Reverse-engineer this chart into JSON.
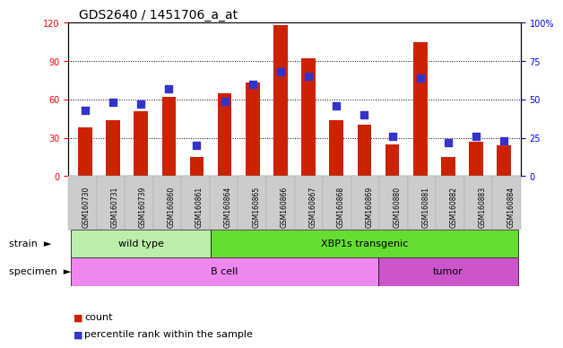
{
  "title": "GDS2640 / 1451706_a_at",
  "samples": [
    "GSM160730",
    "GSM160731",
    "GSM160739",
    "GSM160860",
    "GSM160861",
    "GSM160864",
    "GSM160865",
    "GSM160866",
    "GSM160867",
    "GSM160868",
    "GSM160869",
    "GSM160880",
    "GSM160881",
    "GSM160882",
    "GSM160883",
    "GSM160884"
  ],
  "counts": [
    38,
    44,
    51,
    62,
    15,
    65,
    73,
    118,
    92,
    44,
    40,
    25,
    105,
    15,
    27,
    24
  ],
  "percentiles": [
    43,
    48,
    47,
    57,
    20,
    49,
    60,
    68,
    65,
    46,
    40,
    26,
    64,
    22,
    26,
    23
  ],
  "ylim_left": [
    0,
    120
  ],
  "ylim_right": [
    0,
    100
  ],
  "yticks_left": [
    0,
    30,
    60,
    90,
    120
  ],
  "yticks_right": [
    0,
    25,
    50,
    75,
    100
  ],
  "ytick_labels_right": [
    "0",
    "25",
    "50",
    "75",
    "100%"
  ],
  "bar_color": "#cc2200",
  "dot_color": "#3333cc",
  "strain_labels": [
    "wild type",
    "XBP1s transgenic"
  ],
  "strain_ranges": [
    [
      0,
      4
    ],
    [
      5,
      15
    ]
  ],
  "specimen_labels": [
    "B cell",
    "tumor"
  ],
  "specimen_ranges": [
    [
      0,
      10
    ],
    [
      11,
      15
    ]
  ],
  "strain_color_wt": "#bbeeaa",
  "strain_color_xbp": "#66dd33",
  "specimen_color_bc": "#ee88ee",
  "specimen_color_tu": "#cc55cc",
  "legend_count_label": "count",
  "legend_pct_label": "percentile rank within the sample",
  "bg_color": "#ffffff",
  "bar_width": 0.5,
  "title_fontsize": 10,
  "tick_fontsize": 7,
  "label_fontsize": 8,
  "sample_fontsize": 5.5
}
